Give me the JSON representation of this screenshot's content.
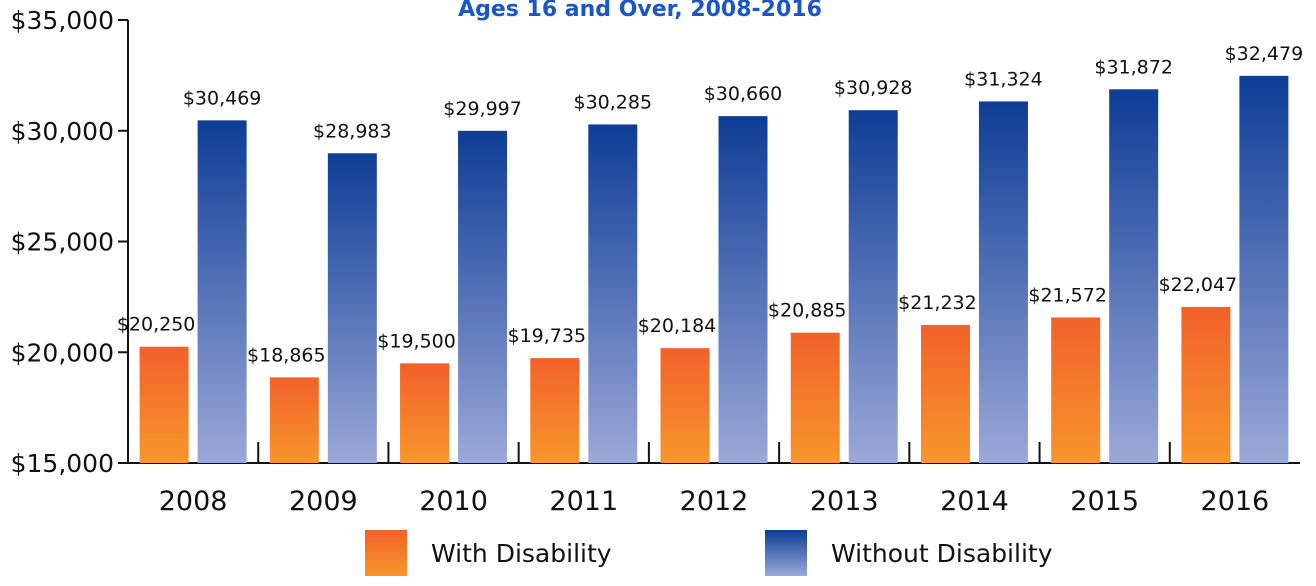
{
  "chart_data": {
    "type": "bar",
    "title": "Ages 16 and Over, 2008-2016",
    "categories": [
      "2008",
      "2009",
      "2010",
      "2011",
      "2012",
      "2013",
      "2014",
      "2015",
      "2016"
    ],
    "series": [
      {
        "name": "With Disability",
        "values": [
          20250,
          18865,
          19500,
          19735,
          20184,
          20885,
          21232,
          21572,
          22047
        ],
        "labels": [
          "$20,250",
          "$18,865",
          "$19,500",
          "$19,735",
          "$20,184",
          "$20,885",
          "$21,232",
          "$21,572",
          "$22,047"
        ],
        "color_top": "#f2612a",
        "color_bottom": "#f7962a"
      },
      {
        "name": "Without Disability",
        "values": [
          30469,
          28983,
          29997,
          30285,
          30660,
          30928,
          31324,
          31872,
          32479
        ],
        "labels": [
          "$30,469",
          "$28,983",
          "$29,997",
          "$30,285",
          "$30,660",
          "$30,928",
          "$31,324",
          "$31,872",
          "$32,479"
        ],
        "color_top": "#0d3d96",
        "color_bottom": "#9ca8d8"
      }
    ],
    "ylim": [
      15000,
      35000
    ],
    "yticks": [
      15000,
      20000,
      25000,
      30000,
      35000
    ],
    "ytick_labels": [
      "$15,000",
      "$20,000",
      "$25,000",
      "$30,000",
      "$35,000"
    ],
    "legend_position": "bottom",
    "grid": false
  }
}
